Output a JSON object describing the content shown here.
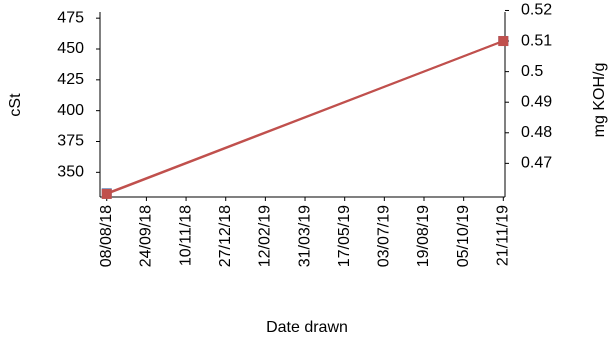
{
  "chart_data": {
    "type": "line",
    "x_label": "Date drawn",
    "y_label": "cSt",
    "y2_label": "mg KOH/g",
    "x": [
      "08/08/18",
      "21/11/19"
    ],
    "series": [
      {
        "color": "#c0504d",
        "marker_color": "#4f81bd",
        "values": [
          333,
          456.5
        ]
      },
      {
        "color": "#c0504d",
        "marker_color": "#c0504d",
        "values": [
          0.46,
          0.51
        ],
        "axis": "y2"
      }
    ],
    "xlim": [
      "31/07/18",
      "23/11/19"
    ],
    "xticks": [
      "08/08/18",
      "24/09/18",
      "10/11/18",
      "27/12/18",
      "12/02/19",
      "31/03/19",
      "17/05/19",
      "03/07/19",
      "19/08/19",
      "05/10/19",
      "21/11/19"
    ],
    "ylim": [
      330,
      480
    ],
    "yticks": [
      350,
      375,
      400,
      425,
      450,
      475
    ],
    "y2lim": [
      0.459,
      0.5195
    ],
    "y2ticks": [
      0.47,
      0.48,
      0.49,
      0.5,
      0.51,
      0.52
    ]
  }
}
